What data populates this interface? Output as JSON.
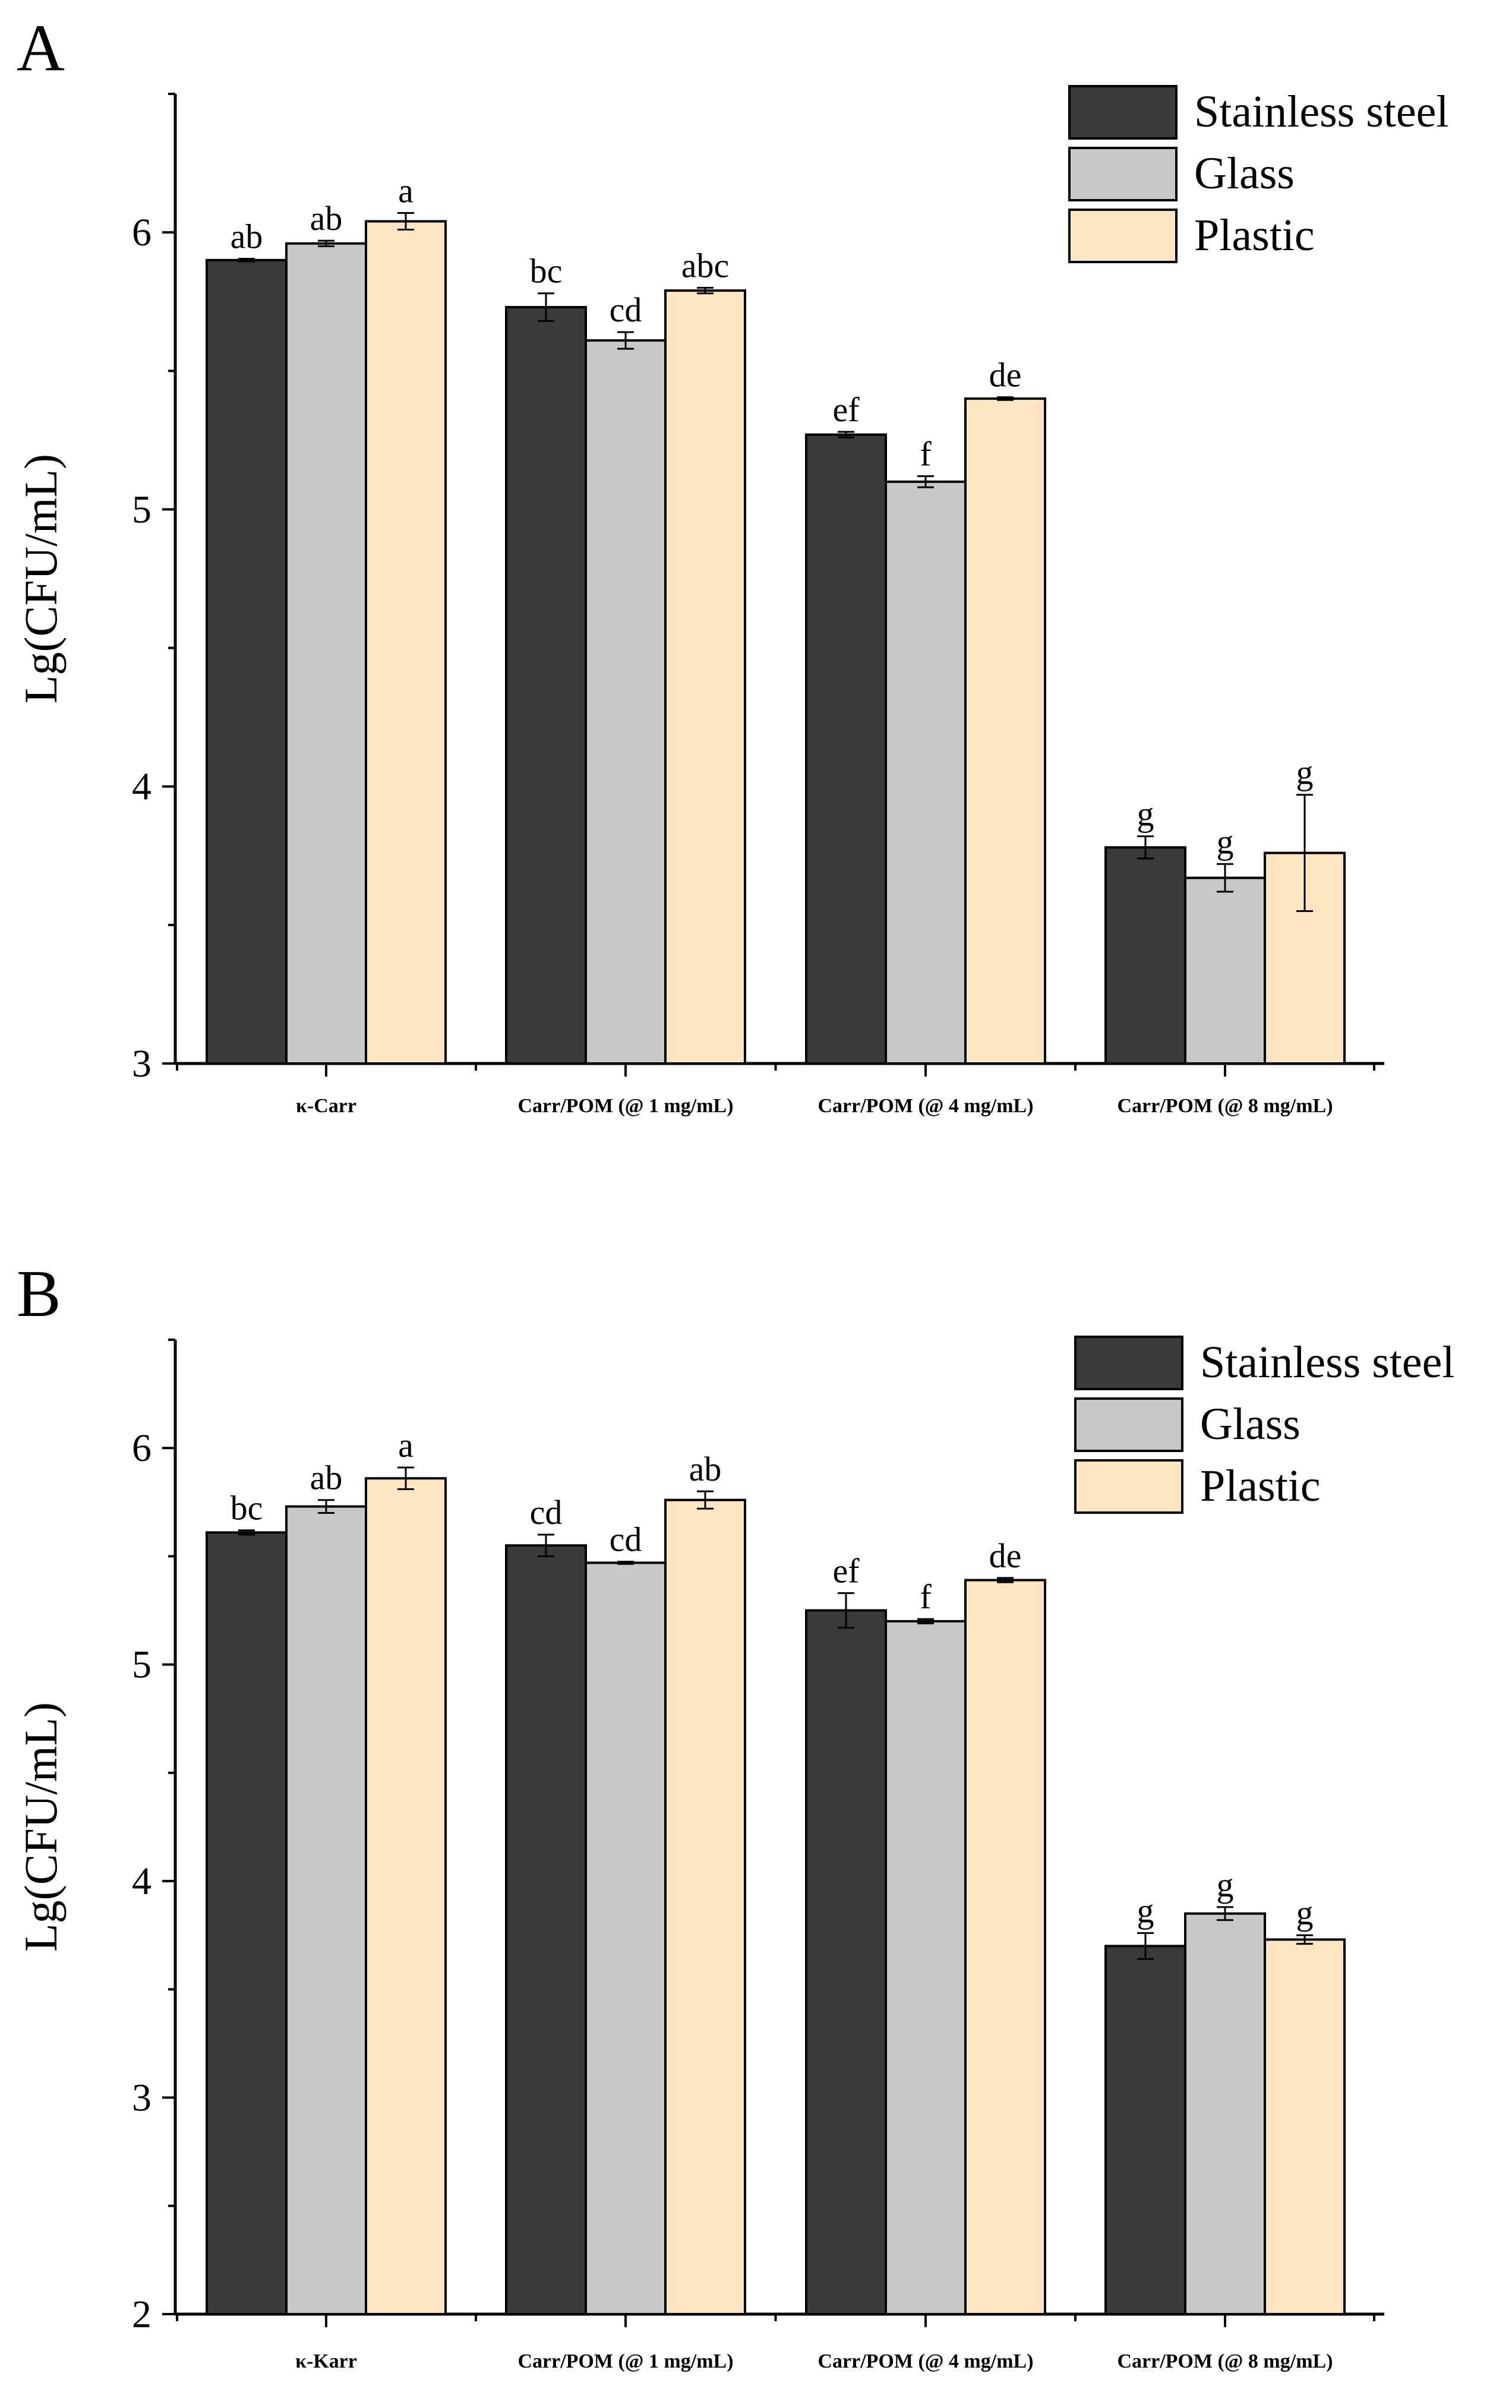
{
  "chart_data": [
    {
      "type": "bar",
      "panel": "A",
      "ylabel": "Lg(CFU/mL)",
      "ylim": [
        3,
        6.5
      ],
      "yticks": [
        3,
        4,
        5,
        6
      ],
      "categories": [
        "κ-Carr",
        "Carr/POM (@ 1 mg/mL)",
        "Carr/POM (@ 4 mg/mL)",
        "Carr/POM (@ 8 mg/mL)"
      ],
      "legend_position": "top-right",
      "series": [
        {
          "name": "Stainless steel",
          "color": "#3a3a3a",
          "values": [
            5.9,
            5.73,
            5.27,
            3.78
          ],
          "errors": [
            0.005,
            0.05,
            0.01,
            0.04
          ],
          "sig": [
            "ab",
            "bc",
            "ef",
            "g"
          ]
        },
        {
          "name": "Glass",
          "color": "#c8c8c8",
          "values": [
            5.96,
            5.61,
            5.1,
            3.67
          ],
          "errors": [
            0.01,
            0.03,
            0.02,
            0.05
          ],
          "sig": [
            "ab",
            "cd",
            "f",
            "g"
          ]
        },
        {
          "name": "Plastic",
          "color": "#fde5c2",
          "values": [
            6.04,
            5.79,
            5.4,
            3.76
          ],
          "errors": [
            0.03,
            0.01,
            0.005,
            0.21
          ],
          "sig": [
            "a",
            "abc",
            "de",
            "g"
          ]
        }
      ]
    },
    {
      "type": "bar",
      "panel": "B",
      "ylabel": "Lg(CFU/mL)",
      "ylim": [
        2,
        6.5
      ],
      "yticks": [
        2,
        3,
        4,
        5,
        6
      ],
      "categories": [
        "κ-Karr",
        "Carr/POM (@ 1 mg/mL)",
        "Carr/POM (@ 4 mg/mL)",
        "Carr/POM (@ 8 mg/mL)"
      ],
      "legend_position": "top-right",
      "series": [
        {
          "name": "Stainless steel",
          "color": "#3a3a3a",
          "values": [
            5.61,
            5.55,
            5.25,
            3.7
          ],
          "errors": [
            0.01,
            0.05,
            0.08,
            0.06
          ],
          "sig": [
            "bc",
            "cd",
            "ef",
            "g"
          ]
        },
        {
          "name": "Glass",
          "color": "#c8c8c8",
          "values": [
            5.73,
            5.47,
            5.2,
            3.85
          ],
          "errors": [
            0.03,
            0.005,
            0.01,
            0.03
          ],
          "sig": [
            "ab",
            "cd",
            "f",
            "g"
          ]
        },
        {
          "name": "Plastic",
          "color": "#fde5c2",
          "values": [
            5.86,
            5.76,
            5.39,
            3.73
          ],
          "errors": [
            0.05,
            0.04,
            0.01,
            0.02
          ],
          "sig": [
            "a",
            "ab",
            "de",
            "g"
          ]
        }
      ]
    }
  ]
}
